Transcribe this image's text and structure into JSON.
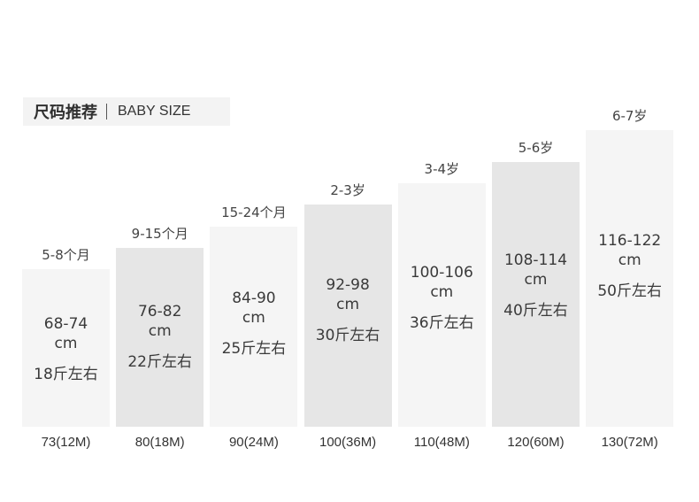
{
  "header": {
    "title_zh": "尺码推荐",
    "title_en": "BABY SIZE"
  },
  "colors": {
    "bar_light": "#f5f5f5",
    "bar_dark": "#e6e6e6",
    "text": "#3a3a3a"
  },
  "chart_data": {
    "type": "bar",
    "categories": [
      "73(12M)",
      "80(18M)",
      "90(24M)",
      "100(36M)",
      "110(48M)",
      "120(60M)",
      "130(72M)"
    ],
    "age_labels": [
      "5-8个月",
      "9-15个月",
      "15-24个月",
      "2-3岁",
      "3-4岁",
      "5-6岁",
      "6-7岁"
    ],
    "height_ranges": [
      "68-74",
      "76-82",
      "84-90",
      "92-98",
      "100-106",
      "108-114",
      "116-122"
    ],
    "height_unit": "cm",
    "weights": [
      "18斤左右",
      "22斤左右",
      "25斤左右",
      "30斤左右",
      "36斤左右",
      "40斤左右",
      "50斤左右"
    ],
    "values": [
      73,
      80,
      90,
      100,
      110,
      120,
      130
    ],
    "shading": [
      "light",
      "dark",
      "light",
      "dark",
      "light",
      "dark",
      "light"
    ]
  }
}
